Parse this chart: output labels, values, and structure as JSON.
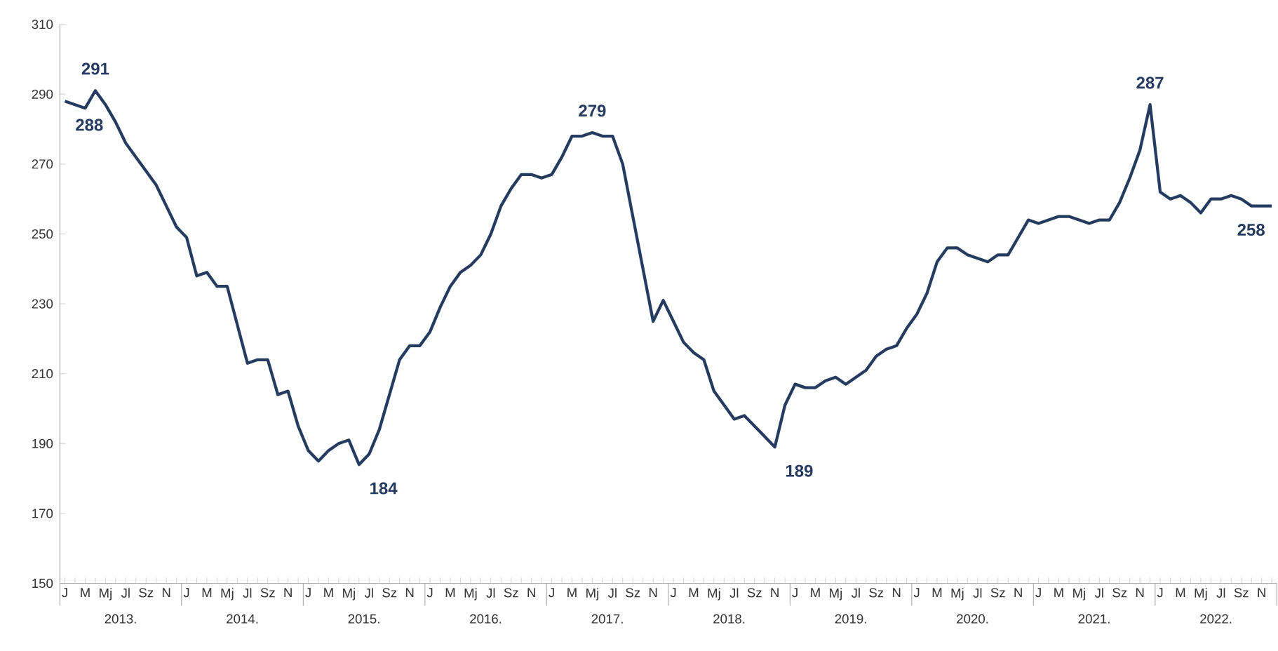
{
  "chart_data": {
    "type": "line",
    "categories": [
      "J",
      null,
      "M",
      null,
      "Mj",
      null,
      "Jl",
      null,
      "Sz",
      null,
      "N",
      null,
      "J",
      null,
      "M",
      null,
      "Mj",
      null,
      "Jl",
      null,
      "Sz",
      null,
      "N",
      null,
      "J",
      null,
      "M",
      null,
      "Mj",
      null,
      "Jl",
      null,
      "Sz",
      null,
      "N",
      null,
      "J",
      null,
      "M",
      null,
      "Mj",
      null,
      "Jl",
      null,
      "Sz",
      null,
      "N",
      null,
      "J",
      null,
      "M",
      null,
      "Mj",
      null,
      "Jl",
      null,
      "Sz",
      null,
      "N",
      null,
      "J",
      null,
      "M",
      null,
      "Mj",
      null,
      "Jl",
      null,
      "Sz",
      null,
      "N",
      null,
      "J",
      null,
      "M",
      null,
      "Mj",
      null,
      "Jl",
      null,
      "Sz",
      null,
      "N",
      null,
      "J",
      null,
      "M",
      null,
      "Mj",
      null,
      "Jl",
      null,
      "Sz",
      null,
      "N",
      null,
      "J",
      null,
      "M",
      null,
      "Mj",
      null,
      "Jl",
      null,
      "Sz",
      null,
      "N",
      null,
      "J",
      null,
      "M",
      null,
      "Mj",
      null,
      "Jl",
      null,
      "Sz",
      null,
      "N",
      null
    ],
    "values": [
      288,
      287,
      286,
      291,
      287,
      282,
      276,
      272,
      268,
      264,
      258,
      252,
      249,
      238,
      239,
      235,
      235,
      224,
      213,
      214,
      214,
      204,
      205,
      195,
      188,
      185,
      188,
      190,
      191,
      184,
      187,
      194,
      204,
      214,
      218,
      218,
      222,
      229,
      235,
      239,
      241,
      244,
      250,
      258,
      263,
      267,
      267,
      266,
      267,
      272,
      278,
      278,
      279,
      278,
      278,
      270,
      255,
      240,
      225,
      231,
      225,
      219,
      216,
      214,
      205,
      201,
      197,
      198,
      195,
      192,
      189,
      201,
      207,
      206,
      206,
      208,
      209,
      207,
      209,
      211,
      215,
      217,
      218,
      223,
      227,
      233,
      242,
      246,
      246,
      244,
      243,
      242,
      244,
      244,
      249,
      254,
      253,
      254,
      255,
      255,
      254,
      253,
      254,
      254,
      259,
      266,
      274,
      287,
      262,
      260,
      261,
      259,
      256,
      260,
      260,
      261,
      260,
      258,
      258,
      258
    ],
    "value_labels": [
      "288",
      null,
      null,
      "291",
      null,
      null,
      null,
      null,
      null,
      null,
      null,
      null,
      null,
      null,
      null,
      null,
      null,
      null,
      null,
      null,
      null,
      null,
      null,
      null,
      null,
      null,
      null,
      null,
      null,
      "184",
      null,
      null,
      null,
      null,
      null,
      null,
      null,
      null,
      null,
      null,
      null,
      null,
      null,
      null,
      null,
      null,
      null,
      null,
      null,
      null,
      null,
      null,
      "279",
      null,
      null,
      null,
      null,
      null,
      null,
      null,
      null,
      null,
      null,
      null,
      null,
      null,
      null,
      null,
      null,
      null,
      "189",
      null,
      null,
      null,
      null,
      null,
      null,
      null,
      null,
      null,
      null,
      null,
      null,
      null,
      null,
      null,
      null,
      null,
      null,
      null,
      null,
      null,
      null,
      null,
      null,
      null,
      null,
      null,
      null,
      null,
      null,
      null,
      null,
      null,
      null,
      null,
      null,
      "287",
      null,
      null,
      null,
      null,
      null,
      null,
      null,
      null,
      null,
      null,
      null,
      "258"
    ],
    "color": "#253c60",
    "ylim": [
      150,
      310
    ],
    "yticks": [
      150,
      170,
      190,
      210,
      230,
      250,
      270,
      290,
      310
    ],
    "annotations": [
      "2013.",
      "2014.",
      "2015.",
      "2016.",
      "2017.",
      "2018.",
      "2019.",
      "2020.",
      "2021.",
      "2022."
    ]
  }
}
